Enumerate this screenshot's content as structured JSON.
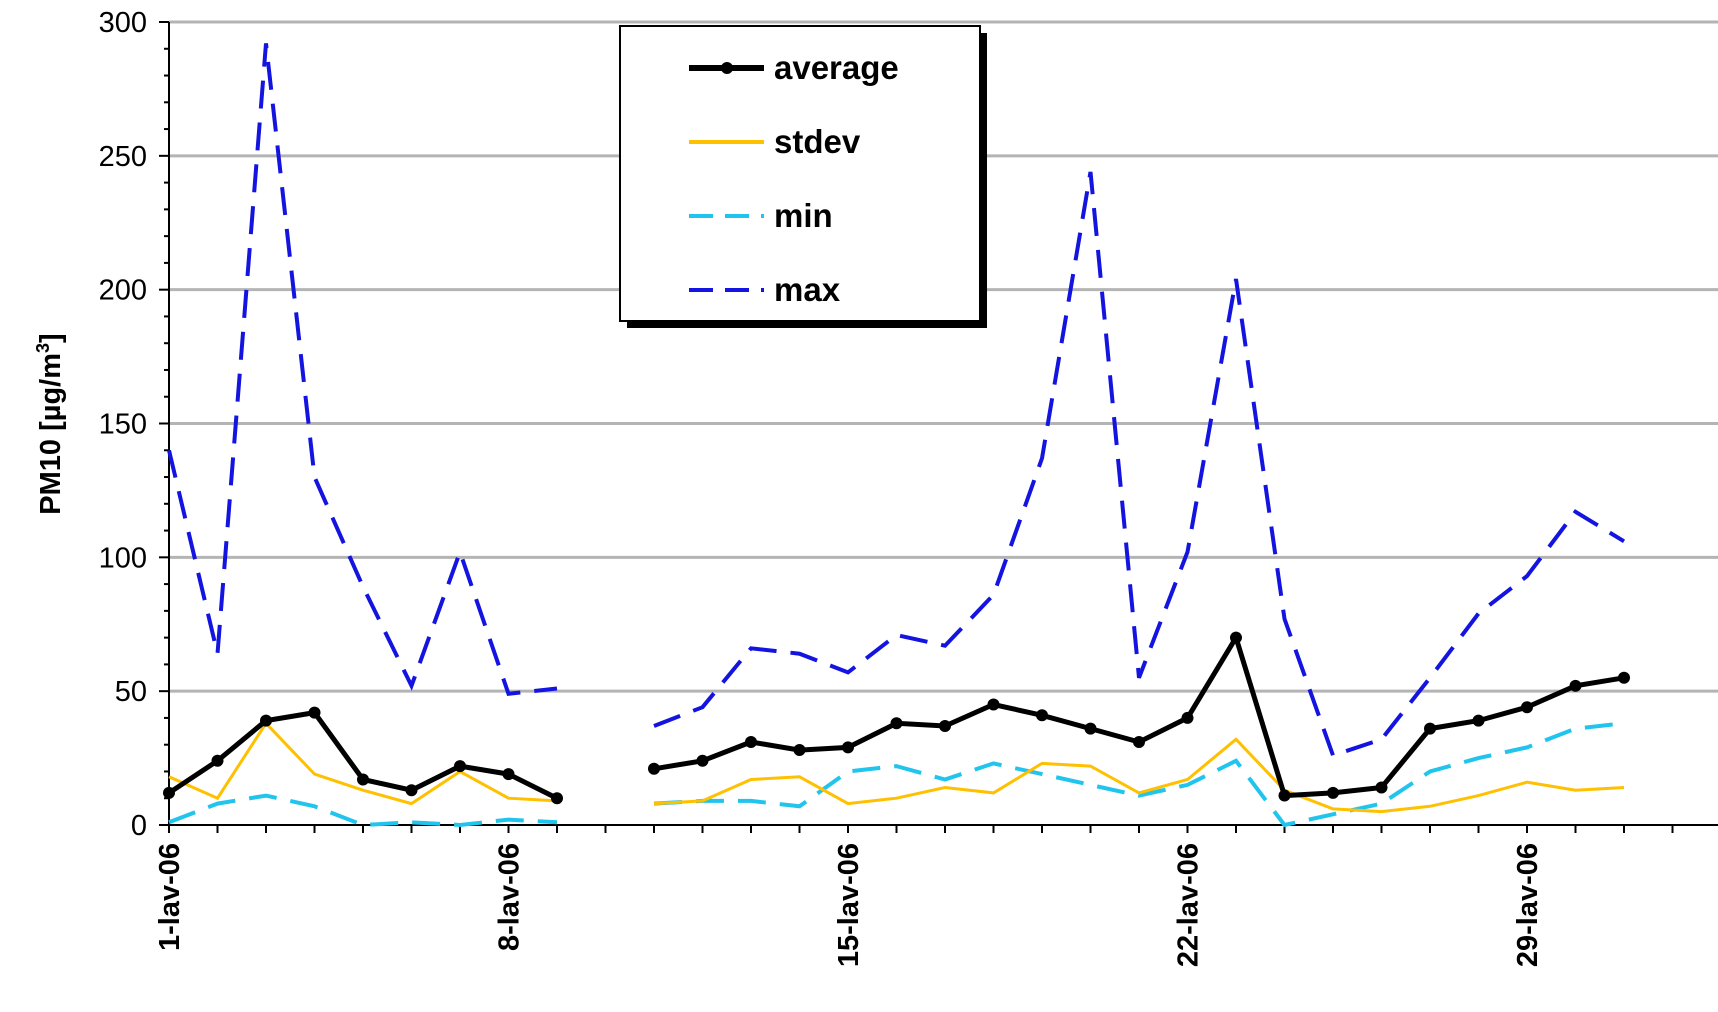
{
  "chart_data": {
    "type": "line",
    "ylabel_main": "PM10 [µg/m",
    "ylabel_sup": "3",
    "ylabel_close": "]",
    "ylim": [
      0,
      300
    ],
    "yticks": [
      0,
      50,
      100,
      150,
      200,
      250,
      300
    ],
    "x_day_range": [
      1,
      32
    ],
    "xticks": [
      {
        "day": 1,
        "label": "1-lav-06"
      },
      {
        "day": 8,
        "label": "8-lav-06"
      },
      {
        "day": 15,
        "label": "15-lav-06"
      },
      {
        "day": 22,
        "label": "22-lav-06"
      },
      {
        "day": 29,
        "label": "29-lav-06"
      }
    ],
    "grid": "horizontal",
    "legend_position": "top-center",
    "days": [
      1,
      2,
      3,
      4,
      5,
      6,
      7,
      8,
      9,
      10,
      11,
      12,
      13,
      14,
      15,
      16,
      17,
      18,
      19,
      20,
      21,
      22,
      23,
      24,
      25,
      26,
      27,
      28,
      29,
      30,
      31
    ],
    "series": [
      {
        "name": "average",
        "color": "#000000",
        "dash": "solid",
        "markers": true,
        "values": [
          12,
          24,
          39,
          42,
          17,
          13,
          22,
          19,
          10,
          null,
          21,
          24,
          31,
          28,
          29,
          38,
          37,
          45,
          41,
          36,
          31,
          40,
          70,
          11,
          12,
          14,
          36,
          39,
          44,
          52,
          55
        ]
      },
      {
        "name": "stdev",
        "color": "#FFC000",
        "dash": "solid",
        "markers": false,
        "values": [
          18,
          10,
          38,
          19,
          13,
          8,
          20,
          10,
          9,
          null,
          8,
          9,
          17,
          18,
          8,
          10,
          14,
          12,
          23,
          22,
          12,
          17,
          32,
          13,
          6,
          5,
          7,
          11,
          16,
          13,
          14
        ]
      },
      {
        "name": "min",
        "color": "#21C4EC",
        "dash": "dashed",
        "markers": false,
        "values": [
          1,
          8,
          11,
          7,
          0,
          1,
          0,
          2,
          1,
          null,
          8,
          9,
          9,
          7,
          20,
          22,
          17,
          23,
          19,
          15,
          11,
          15,
          24,
          0,
          4,
          8,
          20,
          25,
          29,
          36,
          38
        ]
      },
      {
        "name": "max",
        "color": "#1414E0",
        "dash": "dashed",
        "markers": false,
        "values": [
          140,
          64,
          292,
          130,
          89,
          52,
          102,
          49,
          51,
          null,
          37,
          44,
          66,
          64,
          57,
          71,
          67,
          86,
          137,
          244,
          55,
          102,
          204,
          77,
          26,
          32,
          55,
          79,
          93,
          117,
          106
        ]
      }
    ]
  }
}
